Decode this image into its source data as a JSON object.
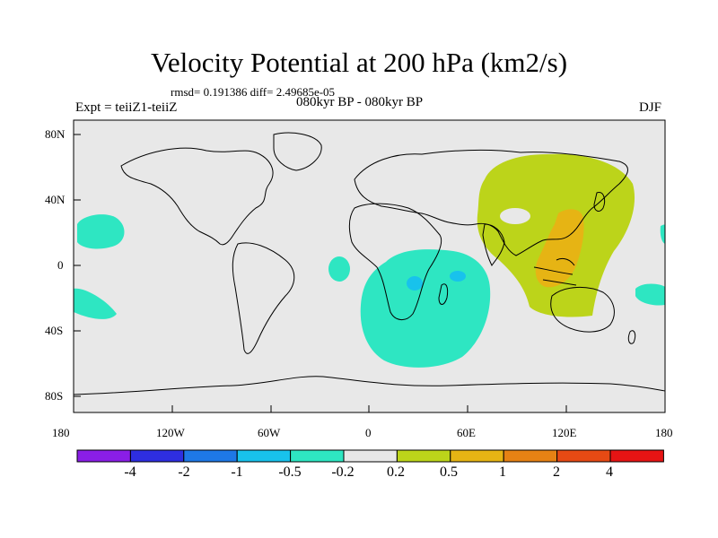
{
  "title": "Velocity Potential at 200 hPa (km2/s)",
  "stats": "rmsd= 0.191386 diff= 2.49685e-05",
  "experiment": "Expt = teiiZ1-teiiZ",
  "period": "080kyr BP - 080kyr BP",
  "season": "DJF",
  "x_ticks": [
    "180",
    "120W",
    "60W",
    "0",
    "60E",
    "120E",
    "180"
  ],
  "y_ticks": [
    "80N",
    "40N",
    "0",
    "40S",
    "80S"
  ],
  "colorbar": {
    "labels": [
      "-4",
      "-2",
      "-1",
      "-0.5",
      "-0.2",
      "0.2",
      "0.5",
      "1",
      "2",
      "4"
    ],
    "colors": [
      "#8a1ee6",
      "#2e2ee0",
      "#1e78e6",
      "#18c2ec",
      "#2ee6c2",
      "#e8e8e8",
      "#bcd41a",
      "#e6b414",
      "#e68214",
      "#e64a14",
      "#e61414"
    ]
  },
  "colors": {
    "ocean_land_bg": "#e8e8e8",
    "negative_weak": "#2ee6c2",
    "negative_mid": "#18c2ec",
    "positive_weak": "#bcd41a",
    "positive_mid": "#e6b414"
  }
}
